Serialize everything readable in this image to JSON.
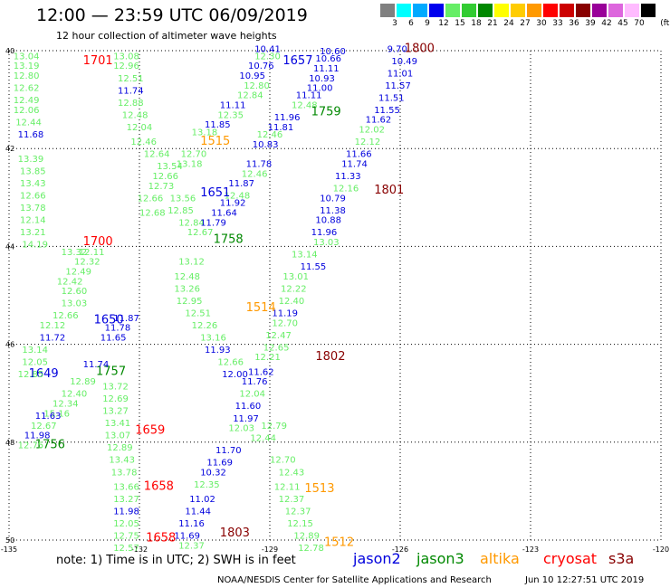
{
  "header": {
    "title": "12:00 — 23:59 UTC 06/09/2019",
    "subtitle": "12 hour collection of altimeter wave heights"
  },
  "legend": {
    "unit": "(ft)",
    "items": [
      {
        "label": "3",
        "color": "#808080"
      },
      {
        "label": "6",
        "color": "#00ffff"
      },
      {
        "label": "9",
        "color": "#00aaff"
      },
      {
        "label": "12",
        "color": "#0000ee"
      },
      {
        "label": "15",
        "color": "#66ee66"
      },
      {
        "label": "18",
        "color": "#33cc33"
      },
      {
        "label": "21",
        "color": "#008800"
      },
      {
        "label": "24",
        "color": "#ffff00"
      },
      {
        "label": "27",
        "color": "#ffcc00"
      },
      {
        "label": "30",
        "color": "#ff9900"
      },
      {
        "label": "33",
        "color": "#ff0000"
      },
      {
        "label": "36",
        "color": "#cc0000"
      },
      {
        "label": "39",
        "color": "#880000"
      },
      {
        "label": "42",
        "color": "#990099"
      },
      {
        "label": "45",
        "color": "#dd66dd"
      },
      {
        "label": "70",
        "color": "#ffbbff"
      },
      {
        "label": "",
        "color": "#000000"
      }
    ]
  },
  "map": {
    "lat_labels": [
      "40",
      "42",
      "44",
      "46",
      "48",
      "50"
    ],
    "lon_labels": [
      "-135",
      "-132",
      "-129",
      "-126",
      "-123",
      "-120"
    ]
  },
  "observations": [
    {
      "t": "13.04",
      "lon": -134.9,
      "lat": 40.1,
      "c": "light"
    },
    {
      "t": "13.19",
      "lon": -134.9,
      "lat": 40.3,
      "c": "light"
    },
    {
      "t": "12.80",
      "lon": -134.9,
      "lat": 40.5,
      "c": "light"
    },
    {
      "t": "12.62",
      "lon": -134.9,
      "lat": 40.75,
      "c": "light"
    },
    {
      "t": "12.49",
      "lon": -134.9,
      "lat": 41.0,
      "c": "light"
    },
    {
      "t": "12.06",
      "lon": -134.9,
      "lat": 41.2,
      "c": "light"
    },
    {
      "t": "12.44",
      "lon": -134.85,
      "lat": 41.45,
      "c": "light"
    },
    {
      "t": "11.68",
      "lon": -134.8,
      "lat": 41.7,
      "c": "blue"
    },
    {
      "t": "13.39",
      "lon": -134.8,
      "lat": 42.2,
      "c": "light"
    },
    {
      "t": "13.85",
      "lon": -134.75,
      "lat": 42.45,
      "c": "light"
    },
    {
      "t": "13.43",
      "lon": -134.75,
      "lat": 42.7,
      "c": "light"
    },
    {
      "t": "12.66",
      "lon": -134.75,
      "lat": 42.95,
      "c": "light"
    },
    {
      "t": "13.78",
      "lon": -134.75,
      "lat": 43.2,
      "c": "light"
    },
    {
      "t": "12.14",
      "lon": -134.75,
      "lat": 43.45,
      "c": "light"
    },
    {
      "t": "13.21",
      "lon": -134.75,
      "lat": 43.7,
      "c": "light"
    },
    {
      "t": "14.19",
      "lon": -134.7,
      "lat": 43.95,
      "c": "light"
    },
    {
      "t": "1701",
      "lon": -133.3,
      "lat": 40.2,
      "c": "red",
      "big": true
    },
    {
      "t": "13.08",
      "lon": -132.6,
      "lat": 40.1,
      "c": "light"
    },
    {
      "t": "12.96",
      "lon": -132.6,
      "lat": 40.3,
      "c": "light"
    },
    {
      "t": "12.51",
      "lon": -132.5,
      "lat": 40.55,
      "c": "light"
    },
    {
      "t": "11.74",
      "lon": -132.5,
      "lat": 40.8,
      "c": "blue"
    },
    {
      "t": "12.88",
      "lon": -132.5,
      "lat": 41.05,
      "c": "light"
    },
    {
      "t": "12.48",
      "lon": -132.4,
      "lat": 41.3,
      "c": "light"
    },
    {
      "t": "12.04",
      "lon": -132.3,
      "lat": 41.55,
      "c": "light"
    },
    {
      "t": "12.46",
      "lon": -132.2,
      "lat": 41.85,
      "c": "light"
    },
    {
      "t": "12.64",
      "lon": -131.9,
      "lat": 42.1,
      "c": "light"
    },
    {
      "t": "13.54",
      "lon": -131.6,
      "lat": 42.35,
      "c": "light"
    },
    {
      "t": "12.66",
      "lon": -131.7,
      "lat": 42.55,
      "c": "light"
    },
    {
      "t": "12.73",
      "lon": -131.8,
      "lat": 42.75,
      "c": "light"
    },
    {
      "t": "12.66",
      "lon": -132.05,
      "lat": 43.0,
      "c": "light"
    },
    {
      "t": "13.56",
      "lon": -131.3,
      "lat": 43.0,
      "c": "light"
    },
    {
      "t": "12.85",
      "lon": -131.35,
      "lat": 43.25,
      "c": "light"
    },
    {
      "t": "12.68",
      "lon": -132.0,
      "lat": 43.3,
      "c": "light"
    },
    {
      "t": "12.84",
      "lon": -131.1,
      "lat": 43.5,
      "c": "light"
    },
    {
      "t": "12.67",
      "lon": -130.9,
      "lat": 43.7,
      "c": "light"
    },
    {
      "t": "1515",
      "lon": -130.6,
      "lat": 41.85,
      "c": "orange",
      "big": true
    },
    {
      "t": "10.41",
      "lon": -129.35,
      "lat": 39.95,
      "c": "blue"
    },
    {
      "t": "12.30",
      "lon": -129.35,
      "lat": 40.1,
      "c": "light"
    },
    {
      "t": "10.76",
      "lon": -129.5,
      "lat": 40.3,
      "c": "blue"
    },
    {
      "t": "10.95",
      "lon": -129.7,
      "lat": 40.5,
      "c": "blue"
    },
    {
      "t": "12.80",
      "lon": -129.6,
      "lat": 40.7,
      "c": "light"
    },
    {
      "t": "12.84",
      "lon": -129.75,
      "lat": 40.9,
      "c": "light"
    },
    {
      "t": "11.11",
      "lon": -130.15,
      "lat": 41.1,
      "c": "blue"
    },
    {
      "t": "12.35",
      "lon": -130.2,
      "lat": 41.3,
      "c": "light"
    },
    {
      "t": "11.85",
      "lon": -130.5,
      "lat": 41.5,
      "c": "blue"
    },
    {
      "t": "13.18",
      "lon": -130.8,
      "lat": 41.65,
      "c": "light"
    },
    {
      "t": "12.70",
      "lon": -131.05,
      "lat": 42.1,
      "c": "light"
    },
    {
      "t": "13.18",
      "lon": -131.15,
      "lat": 42.3,
      "c": "light"
    },
    {
      "t": "1657",
      "lon": -128.7,
      "lat": 40.2,
      "c": "blue",
      "big": true
    },
    {
      "t": "10.60",
      "lon": -127.85,
      "lat": 40.0,
      "c": "blue"
    },
    {
      "t": "10.66",
      "lon": -127.95,
      "lat": 40.15,
      "c": "blue"
    },
    {
      "t": "11.11",
      "lon": -128.0,
      "lat": 40.35,
      "c": "blue"
    },
    {
      "t": "10.93",
      "lon": -128.1,
      "lat": 40.55,
      "c": "blue"
    },
    {
      "t": "11.00",
      "lon": -128.15,
      "lat": 40.75,
      "c": "blue"
    },
    {
      "t": "11.11",
      "lon": -128.4,
      "lat": 40.9,
      "c": "blue"
    },
    {
      "t": "12.48",
      "lon": -128.5,
      "lat": 41.1,
      "c": "light"
    },
    {
      "t": "11.96",
      "lon": -128.9,
      "lat": 41.35,
      "c": "blue"
    },
    {
      "t": "11.81",
      "lon": -129.05,
      "lat": 41.55,
      "c": "blue"
    },
    {
      "t": "12.46",
      "lon": -129.3,
      "lat": 41.7,
      "c": "light"
    },
    {
      "t": "10.83",
      "lon": -129.4,
      "lat": 41.9,
      "c": "blue"
    },
    {
      "t": "11.78",
      "lon": -129.55,
      "lat": 42.3,
      "c": "blue"
    },
    {
      "t": "12.46",
      "lon": -129.65,
      "lat": 42.5,
      "c": "light"
    },
    {
      "t": "11.87",
      "lon": -129.95,
      "lat": 42.7,
      "c": "blue"
    },
    {
      "t": "12.48",
      "lon": -130.05,
      "lat": 42.95,
      "c": "light"
    },
    {
      "t": "11.92",
      "lon": -130.15,
      "lat": 43.1,
      "c": "blue"
    },
    {
      "t": "1651",
      "lon": -130.6,
      "lat": 42.9,
      "c": "blue",
      "big": true
    },
    {
      "t": "11.64",
      "lon": -130.35,
      "lat": 43.3,
      "c": "blue"
    },
    {
      "t": "11.79",
      "lon": -130.6,
      "lat": 43.5,
      "c": "blue"
    },
    {
      "t": "9.70",
      "lon": -126.3,
      "lat": 39.95,
      "c": "blue"
    },
    {
      "t": "10.49",
      "lon": -126.2,
      "lat": 40.2,
      "c": "blue"
    },
    {
      "t": "11.01",
      "lon": -126.3,
      "lat": 40.45,
      "c": "blue"
    },
    {
      "t": "11.57",
      "lon": -126.35,
      "lat": 40.7,
      "c": "blue"
    },
    {
      "t": "11.51",
      "lon": -126.5,
      "lat": 40.95,
      "c": "blue"
    },
    {
      "t": "11.55",
      "lon": -126.6,
      "lat": 41.2,
      "c": "blue"
    },
    {
      "t": "11.62",
      "lon": -126.8,
      "lat": 41.4,
      "c": "blue"
    },
    {
      "t": "12.02",
      "lon": -126.95,
      "lat": 41.6,
      "c": "light"
    },
    {
      "t": "12.12",
      "lon": -127.05,
      "lat": 41.85,
      "c": "light"
    },
    {
      "t": "11.66",
      "lon": -127.25,
      "lat": 42.1,
      "c": "blue"
    },
    {
      "t": "11.74",
      "lon": -127.35,
      "lat": 42.3,
      "c": "blue"
    },
    {
      "t": "11.33",
      "lon": -127.5,
      "lat": 42.55,
      "c": "blue"
    },
    {
      "t": "12.16",
      "lon": -127.55,
      "lat": 42.8,
      "c": "light"
    },
    {
      "t": "10.79",
      "lon": -127.85,
      "lat": 43.0,
      "c": "blue"
    },
    {
      "t": "11.38",
      "lon": -127.85,
      "lat": 43.25,
      "c": "blue"
    },
    {
      "t": "10.88",
      "lon": -127.95,
      "lat": 43.45,
      "c": "blue"
    },
    {
      "t": "11.96",
      "lon": -128.05,
      "lat": 43.7,
      "c": "blue"
    },
    {
      "t": "13.03",
      "lon": -128.0,
      "lat": 43.9,
      "c": "light"
    },
    {
      "t": "13.14",
      "lon": -128.5,
      "lat": 44.15,
      "c": "light"
    },
    {
      "t": "11.55",
      "lon": -128.3,
      "lat": 44.4,
      "c": "blue"
    },
    {
      "t": "13.01",
      "lon": -128.7,
      "lat": 44.6,
      "c": "light"
    },
    {
      "t": "12.22",
      "lon": -128.75,
      "lat": 44.85,
      "c": "light"
    },
    {
      "t": "12.40",
      "lon": -128.8,
      "lat": 45.1,
      "c": "light"
    },
    {
      "t": "11.19",
      "lon": -128.95,
      "lat": 45.35,
      "c": "blue"
    },
    {
      "t": "12.70",
      "lon": -128.95,
      "lat": 45.55,
      "c": "light"
    },
    {
      "t": "12.47",
      "lon": -129.1,
      "lat": 45.8,
      "c": "light"
    },
    {
      "t": "12.65",
      "lon": -129.15,
      "lat": 46.05,
      "c": "light"
    },
    {
      "t": "12.21",
      "lon": -129.35,
      "lat": 46.25,
      "c": "light"
    },
    {
      "t": "11.62",
      "lon": -129.5,
      "lat": 46.55,
      "c": "blue"
    },
    {
      "t": "11.76",
      "lon": -129.65,
      "lat": 46.75,
      "c": "blue"
    },
    {
      "t": "12.04",
      "lon": -129.7,
      "lat": 47.0,
      "c": "light"
    },
    {
      "t": "11.60",
      "lon": -129.8,
      "lat": 47.25,
      "c": "blue"
    },
    {
      "t": "11.97",
      "lon": -129.85,
      "lat": 47.5,
      "c": "blue"
    },
    {
      "t": "12.03",
      "lon": -129.95,
      "lat": 47.7,
      "c": "light"
    },
    {
      "t": "12.44",
      "lon": -129.45,
      "lat": 47.9,
      "c": "light"
    },
    {
      "t": "11.70",
      "lon": -130.25,
      "lat": 48.15,
      "c": "blue"
    },
    {
      "t": "11.69",
      "lon": -130.45,
      "lat": 48.4,
      "c": "blue"
    },
    {
      "t": "10.32",
      "lon": -130.6,
      "lat": 48.6,
      "c": "blue"
    },
    {
      "t": "12.35",
      "lon": -130.75,
      "lat": 48.85,
      "c": "light"
    },
    {
      "t": "11.02",
      "lon": -130.85,
      "lat": 49.15,
      "c": "blue"
    },
    {
      "t": "11.44",
      "lon": -130.95,
      "lat": 49.4,
      "c": "blue"
    },
    {
      "t": "11.16",
      "lon": -131.1,
      "lat": 49.65,
      "c": "blue"
    },
    {
      "t": "11.69",
      "lon": -131.2,
      "lat": 49.9,
      "c": "blue"
    },
    {
      "t": "12.37",
      "lon": -131.1,
      "lat": 50.1,
      "c": "light"
    },
    {
      "t": "1800",
      "lon": -125.9,
      "lat": 39.95,
      "c": "darkred",
      "big": true
    },
    {
      "t": "1801",
      "lon": -126.6,
      "lat": 42.85,
      "c": "darkred",
      "big": true
    },
    {
      "t": "1802",
      "lon": -127.95,
      "lat": 46.25,
      "c": "darkred",
      "big": true
    },
    {
      "t": "1803",
      "lon": -130.15,
      "lat": 49.85,
      "c": "darkred",
      "big": true
    },
    {
      "t": "1759",
      "lon": -128.05,
      "lat": 41.25,
      "c": "green",
      "big": true
    },
    {
      "t": "1758",
      "lon": -130.3,
      "lat": 43.85,
      "c": "green",
      "big": true
    },
    {
      "t": "1757",
      "lon": -133.0,
      "lat": 46.55,
      "c": "green",
      "big": true
    },
    {
      "t": "1756",
      "lon": -134.4,
      "lat": 48.05,
      "c": "green",
      "big": true
    },
    {
      "t": "1514",
      "lon": -129.55,
      "lat": 45.25,
      "c": "orange",
      "big": true
    },
    {
      "t": "1513",
      "lon": -128.2,
      "lat": 48.95,
      "c": "orange",
      "big": true
    },
    {
      "t": "1512",
      "lon": -127.75,
      "lat": 50.05,
      "c": "orange",
      "big": true
    },
    {
      "t": "1700",
      "lon": -133.3,
      "lat": 43.9,
      "c": "red",
      "big": true
    },
    {
      "t": "1659",
      "lon": -132.1,
      "lat": 47.75,
      "c": "red",
      "big": true
    },
    {
      "t": "1658",
      "lon": -131.9,
      "lat": 48.9,
      "c": "red",
      "big": true
    },
    {
      "t": "1658",
      "lon": -131.85,
      "lat": 49.95,
      "c": "red",
      "big": true
    },
    {
      "t": "1650",
      "lon": -133.05,
      "lat": 45.5,
      "c": "blue",
      "big": true
    },
    {
      "t": "1649",
      "lon": -134.55,
      "lat": 46.6,
      "c": "blue",
      "big": true
    },
    {
      "t": "13.32",
      "lon": -133.8,
      "lat": 44.1,
      "c": "light"
    },
    {
      "t": "12.11",
      "lon": -133.4,
      "lat": 44.1,
      "c": "light"
    },
    {
      "t": "12.32",
      "lon": -133.5,
      "lat": 44.3,
      "c": "light"
    },
    {
      "t": "12.49",
      "lon": -133.7,
      "lat": 44.5,
      "c": "light"
    },
    {
      "t": "12.42",
      "lon": -133.9,
      "lat": 44.7,
      "c": "light"
    },
    {
      "t": "12.60",
      "lon": -133.8,
      "lat": 44.9,
      "c": "light"
    },
    {
      "t": "13.03",
      "lon": -133.8,
      "lat": 45.15,
      "c": "light"
    },
    {
      "t": "12.66",
      "lon": -134.0,
      "lat": 45.4,
      "c": "light"
    },
    {
      "t": "12.12",
      "lon": -134.3,
      "lat": 45.6,
      "c": "light"
    },
    {
      "t": "11.72",
      "lon": -134.3,
      "lat": 45.85,
      "c": "blue"
    },
    {
      "t": "13.14",
      "lon": -134.7,
      "lat": 46.1,
      "c": "light"
    },
    {
      "t": "12.05",
      "lon": -134.7,
      "lat": 46.35,
      "c": "light"
    },
    {
      "t": "12.85",
      "lon": -134.8,
      "lat": 46.6,
      "c": "light"
    },
    {
      "t": "11.87",
      "lon": -132.6,
      "lat": 45.45,
      "c": "blue"
    },
    {
      "t": "11.78",
      "lon": -132.8,
      "lat": 45.65,
      "c": "blue"
    },
    {
      "t": "11.65",
      "lon": -132.9,
      "lat": 45.85,
      "c": "blue"
    },
    {
      "t": "11.74",
      "lon": -133.3,
      "lat": 46.4,
      "c": "blue"
    },
    {
      "t": "12.89",
      "lon": -133.6,
      "lat": 46.75,
      "c": "light"
    },
    {
      "t": "12.40",
      "lon": -133.8,
      "lat": 47.0,
      "c": "light"
    },
    {
      "t": "12.34",
      "lon": -134.0,
      "lat": 47.2,
      "c": "light"
    },
    {
      "t": "15.16",
      "lon": -134.2,
      "lat": 47.4,
      "c": "light"
    },
    {
      "t": "12.67",
      "lon": -134.5,
      "lat": 47.65,
      "c": "light"
    },
    {
      "t": "11.63",
      "lon": -134.4,
      "lat": 47.45,
      "c": "blue"
    },
    {
      "t": "11.98",
      "lon": -134.65,
      "lat": 47.85,
      "c": "blue"
    },
    {
      "t": "12.75",
      "lon": -134.8,
      "lat": 48.05,
      "c": "light"
    },
    {
      "t": "13.72",
      "lon": -132.85,
      "lat": 46.85,
      "c": "light"
    },
    {
      "t": "12.69",
      "lon": -132.85,
      "lat": 47.1,
      "c": "light"
    },
    {
      "t": "13.27",
      "lon": -132.85,
      "lat": 47.35,
      "c": "light"
    },
    {
      "t": "13.41",
      "lon": -132.8,
      "lat": 47.6,
      "c": "light"
    },
    {
      "t": "13.07",
      "lon": -132.8,
      "lat": 47.85,
      "c": "light"
    },
    {
      "t": "12.89",
      "lon": -132.75,
      "lat": 48.1,
      "c": "light"
    },
    {
      "t": "13.43",
      "lon": -132.7,
      "lat": 48.35,
      "c": "light"
    },
    {
      "t": "13.78",
      "lon": -132.65,
      "lat": 48.6,
      "c": "light"
    },
    {
      "t": "13.66",
      "lon": -132.6,
      "lat": 48.9,
      "c": "light"
    },
    {
      "t": "13.27",
      "lon": -132.6,
      "lat": 49.15,
      "c": "light"
    },
    {
      "t": "11.98",
      "lon": -132.6,
      "lat": 49.4,
      "c": "blue"
    },
    {
      "t": "12.05",
      "lon": -132.6,
      "lat": 49.65,
      "c": "light"
    },
    {
      "t": "12.75",
      "lon": -132.6,
      "lat": 49.9,
      "c": "light"
    },
    {
      "t": "12.57",
      "lon": -132.6,
      "lat": 50.15,
      "c": "light"
    },
    {
      "t": "12.48",
      "lon": -131.2,
      "lat": 44.6,
      "c": "light"
    },
    {
      "t": "13.12",
      "lon": -131.1,
      "lat": 44.3,
      "c": "light"
    },
    {
      "t": "13.26",
      "lon": -131.2,
      "lat": 44.85,
      "c": "light"
    },
    {
      "t": "12.95",
      "lon": -131.15,
      "lat": 45.1,
      "c": "light"
    },
    {
      "t": "12.51",
      "lon": -130.95,
      "lat": 45.35,
      "c": "light"
    },
    {
      "t": "12.26",
      "lon": -130.8,
      "lat": 45.6,
      "c": "light"
    },
    {
      "t": "13.16",
      "lon": -130.6,
      "lat": 45.85,
      "c": "light"
    },
    {
      "t": "11.93",
      "lon": -130.5,
      "lat": 46.1,
      "c": "blue"
    },
    {
      "t": "12.66",
      "lon": -130.2,
      "lat": 46.35,
      "c": "light"
    },
    {
      "t": "12.00",
      "lon": -130.1,
      "lat": 46.6,
      "c": "blue"
    },
    {
      "t": "12.70",
      "lon": -129.0,
      "lat": 48.35,
      "c": "light"
    },
    {
      "t": "12.43",
      "lon": -128.8,
      "lat": 48.6,
      "c": "light"
    },
    {
      "t": "12.11",
      "lon": -128.9,
      "lat": 48.9,
      "c": "light"
    },
    {
      "t": "12.37",
      "lon": -128.8,
      "lat": 49.15,
      "c": "light"
    },
    {
      "t": "12.37",
      "lon": -128.65,
      "lat": 49.4,
      "c": "light"
    },
    {
      "t": "12.15",
      "lon": -128.6,
      "lat": 49.65,
      "c": "light"
    },
    {
      "t": "12.89",
      "lon": -128.45,
      "lat": 49.9,
      "c": "light"
    },
    {
      "t": "12.78",
      "lon": -128.35,
      "lat": 50.15,
      "c": "light"
    },
    {
      "t": "12.79",
      "lon": -129.2,
      "lat": 47.65,
      "c": "light"
    }
  ],
  "footer": {
    "note": "note: 1) Time is in UTC; 2) SWH is in feet",
    "satellites": [
      {
        "name": "jason2",
        "color": "#0000dd"
      },
      {
        "name": "jason3",
        "color": "#008800"
      },
      {
        "name": "altika",
        "color": "#ff9900"
      },
      {
        "name": "cryosat",
        "color": "#ff0000"
      },
      {
        "name": "s3a",
        "color": "#880000"
      }
    ],
    "credit": "NOAA/NESDIS Center for Satellite Applications and Research",
    "timestamp": "Jun 10 12:27:51 UTC 2019"
  },
  "colors": {
    "light": "#66ee66",
    "blue": "#0000dd",
    "green": "#008800",
    "red": "#ff0000",
    "darkred": "#880000",
    "orange": "#ff9900"
  }
}
